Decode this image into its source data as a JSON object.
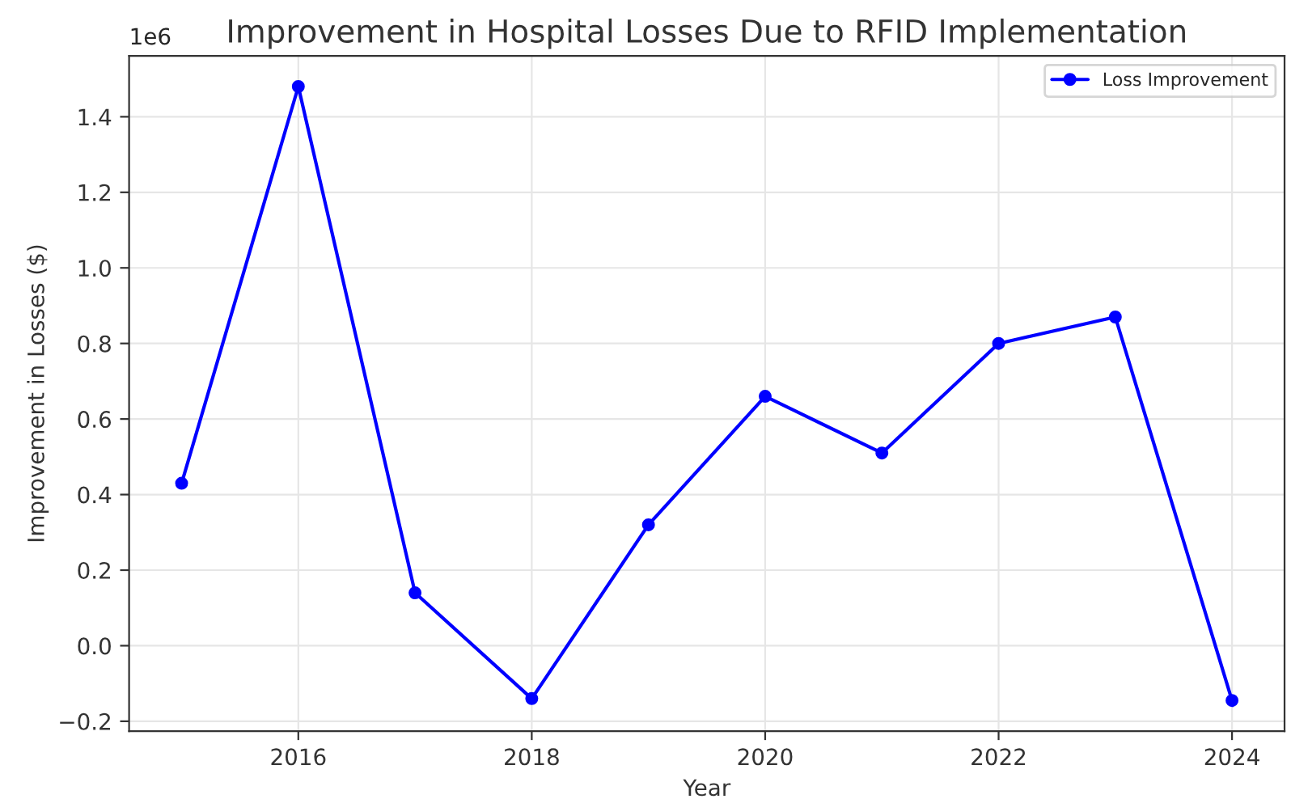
{
  "chart_data": {
    "type": "line",
    "title": "Improvement in Hospital Losses Due to RFID Implementation",
    "xlabel": "Year",
    "ylabel": "Improvement in Losses ($)",
    "x": [
      2015,
      2016,
      2017,
      2018,
      2019,
      2020,
      2021,
      2022,
      2023,
      2024
    ],
    "series": [
      {
        "name": "Loss Improvement",
        "color": "#0000ff",
        "values": [
          0.43,
          1.48,
          0.14,
          -0.14,
          0.32,
          0.66,
          0.51,
          0.8,
          0.87,
          -0.145
        ]
      }
    ],
    "xlim": [
      2014.55,
      2024.45
    ],
    "xticks": [
      2016,
      2018,
      2020,
      2022,
      2024
    ],
    "ylim": [
      -0.226,
      1.561
    ],
    "yticks": [
      {
        "value": -0.2,
        "label": "−0.2"
      },
      {
        "value": 0,
        "label": "0.0"
      },
      {
        "value": 0.2,
        "label": "0.2"
      },
      {
        "value": 0.4,
        "label": "0.4"
      },
      {
        "value": 0.6,
        "label": "0.6"
      },
      {
        "value": 0.8,
        "label": "0.8"
      },
      {
        "value": 1.0,
        "label": "1.0"
      },
      {
        "value": 1.2,
        "label": "1.2"
      },
      {
        "value": 1.4,
        "label": "1.4"
      }
    ],
    "annotations": [
      "1e6"
    ],
    "grid": true,
    "legend": "top right",
    "marker": "circle",
    "line_style": "solid"
  }
}
